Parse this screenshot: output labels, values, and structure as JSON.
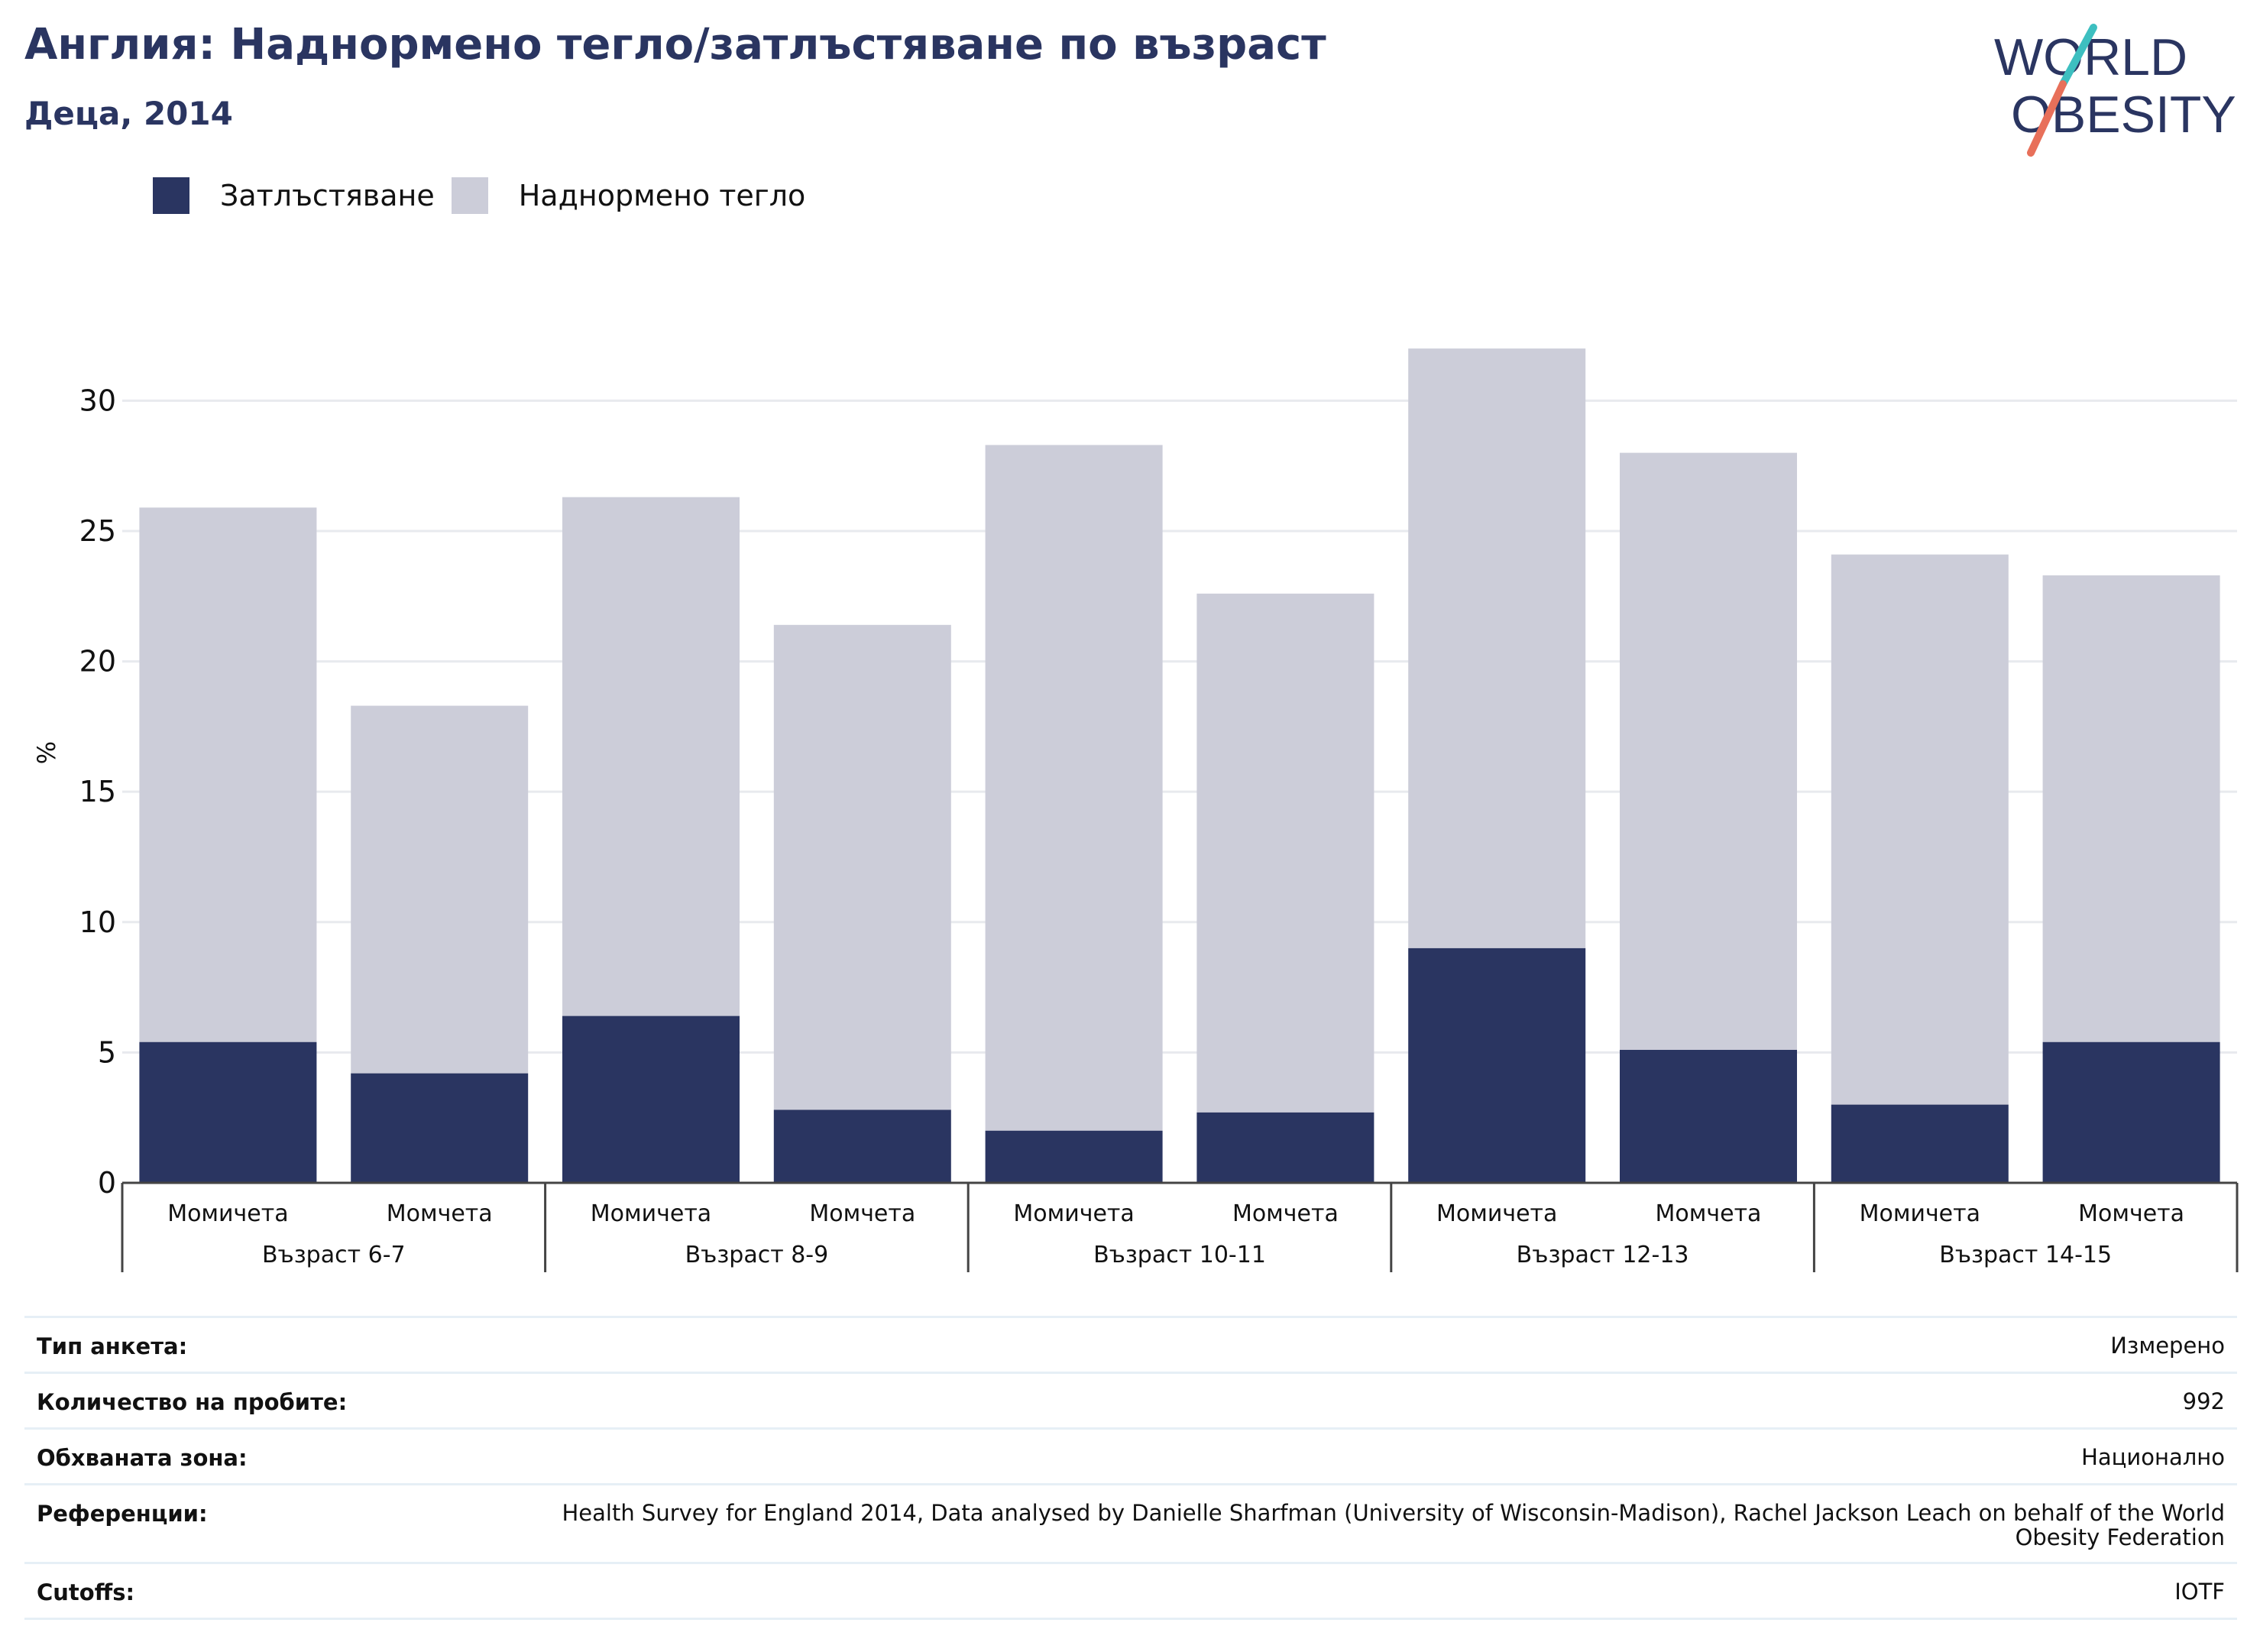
{
  "header": {
    "title": "Англия: Наднормено тегло/затлъстяване по възраст",
    "subtitle": "Деца, 2014"
  },
  "logo": {
    "line1": "WORLD",
    "line2": "OBESITY",
    "colors": {
      "text": "#2a3561",
      "slash_teal": "#3dbfc0",
      "slash_coral": "#e8705a"
    }
  },
  "legend": [
    {
      "label": "Затлъстяване",
      "color": "#2a3561"
    },
    {
      "label": "Наднормено тегло",
      "color": "#cccdd9"
    }
  ],
  "chart_data": {
    "type": "bar",
    "stacked": true,
    "ylabel": "%",
    "ylim": [
      0,
      33
    ],
    "yticks": [
      0,
      5,
      10,
      15,
      20,
      25,
      30
    ],
    "grid": true,
    "groups": [
      {
        "label": "Възраст 6-7",
        "categories": [
          "Момичета",
          "Момчета"
        ]
      },
      {
        "label": "Възраст 8-9",
        "categories": [
          "Момичета",
          "Момчета"
        ]
      },
      {
        "label": "Възраст 10-11",
        "categories": [
          "Момичета",
          "Момчета"
        ]
      },
      {
        "label": "Възраст 12-13",
        "categories": [
          "Момичета",
          "Момчета"
        ]
      },
      {
        "label": "Възраст 14-15",
        "categories": [
          "Момичета",
          "Момчета"
        ]
      }
    ],
    "series": [
      {
        "name": "Затлъстяване",
        "color": "#2a3561",
        "values": [
          5.4,
          4.2,
          6.4,
          2.8,
          2.0,
          2.7,
          9.0,
          5.1,
          3.0,
          5.4
        ]
      },
      {
        "name": "Наднормено тегло",
        "color": "#cccdd9",
        "values": [
          20.5,
          14.1,
          19.9,
          18.6,
          26.3,
          19.9,
          23.0,
          22.9,
          21.1,
          17.9
        ]
      }
    ]
  },
  "info_table": [
    {
      "label": "Тип анкета:",
      "value": "Измерено"
    },
    {
      "label": "Количество на пробите:",
      "value": "992"
    },
    {
      "label": "Обхваната зона:",
      "value": "Национално"
    },
    {
      "label": "Референции:",
      "value": "Health Survey for England 2014, Data analysed by Danielle Sharfman (University of Wisconsin-Madison), Rachel Jackson Leach on behalf of the World Obesity Federation"
    },
    {
      "label": "Cutoffs:",
      "value": "IOTF"
    }
  ]
}
